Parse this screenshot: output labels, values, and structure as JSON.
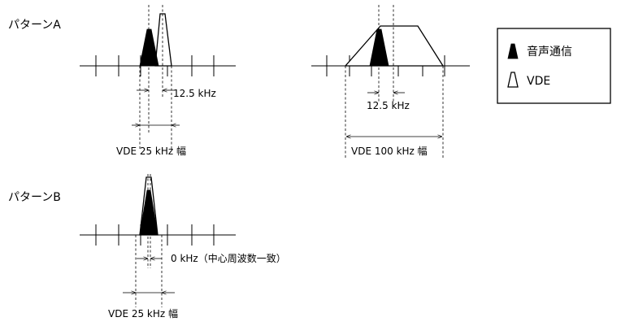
{
  "pattern_a": {
    "title": "パターンA",
    "narrow": {
      "offset_label": "12.5 kHz",
      "width_label": "VDE 25 kHz 幅"
    },
    "wide": {
      "offset_label": "12.5 kHz",
      "width_label": "VDE 100 kHz 幅"
    }
  },
  "pattern_b": {
    "title": "パターンB",
    "offset_label": "0 kHz（中心周波数一致）",
    "width_label": "VDE 25 kHz 幅"
  },
  "legend": {
    "voice_label": "音声通信",
    "vde_label": "VDE"
  }
}
